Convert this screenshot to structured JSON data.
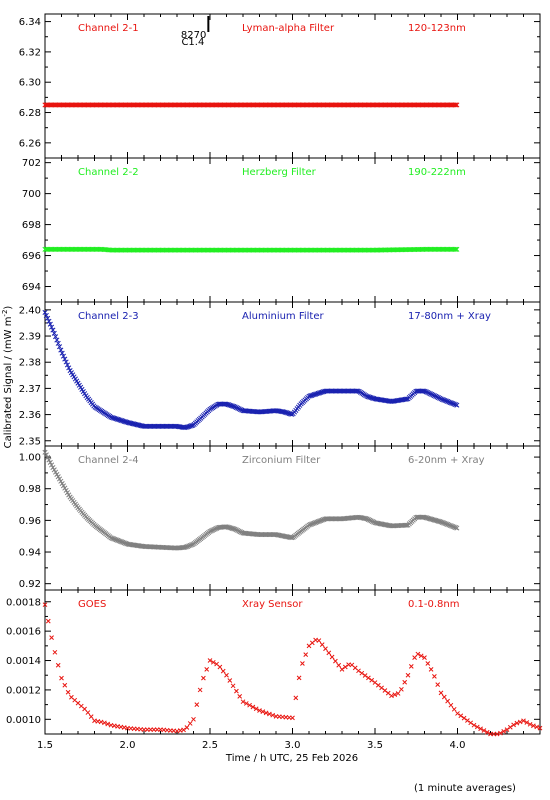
{
  "chart_data": {
    "type": "scatter",
    "xlabel": "Time / h UTC, 25 Feb 2026",
    "ylabel": "Calibrated Signal / (mW m",
    "ylabel_sup": "-2",
    "ylabel_close": ")",
    "footnote": "(1 minute averages)",
    "xlim": [
      1.5,
      4.5
    ],
    "xticks": [
      "1.5",
      "2.0",
      "2.5",
      "3.0",
      "3.5",
      "4.0"
    ],
    "xtick_values": [
      1.5,
      2.0,
      2.5,
      3.0,
      3.5,
      4.0
    ],
    "flare_marker": {
      "x": 2.49,
      "label_top": "8270",
      "label_bottom": "C1.4"
    },
    "panels": [
      {
        "name": "Channel 2-1",
        "filter": "Lyman-alpha Filter",
        "band": "120-123nm",
        "color": "#e8140f",
        "ylim": [
          6.25,
          6.345
        ],
        "yticks": [
          "6.26",
          "6.28",
          "6.30",
          "6.32",
          "6.34"
        ],
        "ytick_values": [
          6.26,
          6.28,
          6.3,
          6.32,
          6.34
        ],
        "x": [
          1.5,
          1.6,
          1.7,
          1.8,
          1.85,
          1.9,
          2.0,
          2.2,
          2.5,
          2.8,
          3.0,
          3.2,
          3.5,
          3.8,
          4.0
        ],
        "y": [
          6.285,
          6.285,
          6.285,
          6.285,
          6.285,
          6.285,
          6.285,
          6.285,
          6.285,
          6.285,
          6.285,
          6.285,
          6.285,
          6.285,
          6.285
        ]
      },
      {
        "name": "Channel 2-2",
        "filter": "Herzberg Filter",
        "band": "190-222nm",
        "color": "#22ee22",
        "ylim": [
          693,
          702.3
        ],
        "yticks": [
          "694",
          "696",
          "698",
          "700",
          "702"
        ],
        "ytick_values": [
          694,
          696,
          698,
          700,
          702
        ],
        "x": [
          1.5,
          1.6,
          1.7,
          1.8,
          1.85,
          1.9,
          2.0,
          2.2,
          2.5,
          2.8,
          3.0,
          3.2,
          3.5,
          3.8,
          4.0
        ],
        "y": [
          696.4,
          696.4,
          696.4,
          696.4,
          696.4,
          696.35,
          696.35,
          696.35,
          696.35,
          696.35,
          696.35,
          696.35,
          696.35,
          696.4,
          696.4
        ]
      },
      {
        "name": "Channel 2-3",
        "filter": "Aluminium Filter",
        "band": "17-80nm + Xray",
        "color": "#1a22b0",
        "ylim": [
          2.348,
          2.403
        ],
        "yticks": [
          "2.35",
          "2.36",
          "2.37",
          "2.38",
          "2.39",
          "2.40"
        ],
        "ytick_values": [
          2.35,
          2.36,
          2.37,
          2.38,
          2.39,
          2.4
        ],
        "x": [
          1.5,
          1.55,
          1.6,
          1.65,
          1.7,
          1.75,
          1.8,
          1.85,
          1.9,
          2.0,
          2.1,
          2.2,
          2.3,
          2.35,
          2.4,
          2.45,
          2.5,
          2.55,
          2.6,
          2.65,
          2.7,
          2.8,
          2.9,
          2.95,
          3.0,
          3.05,
          3.1,
          3.2,
          3.3,
          3.4,
          3.45,
          3.5,
          3.6,
          3.7,
          3.75,
          3.8,
          3.9,
          4.0
        ],
        "y": [
          2.399,
          2.392,
          2.384,
          2.377,
          2.372,
          2.367,
          2.363,
          2.361,
          2.359,
          2.357,
          2.3555,
          2.3555,
          2.3555,
          2.355,
          2.356,
          2.359,
          2.362,
          2.364,
          2.364,
          2.363,
          2.3615,
          2.361,
          2.3615,
          2.361,
          2.36,
          2.364,
          2.367,
          2.369,
          2.369,
          2.369,
          2.367,
          2.366,
          2.365,
          2.366,
          2.369,
          2.369,
          2.366,
          2.3635
        ]
      },
      {
        "name": "Channel 2-4",
        "filter": "Zirconium Filter",
        "band": "6-20nm + Xray",
        "color": "#808080",
        "ylim": [
          0.916,
          1.007
        ],
        "yticks": [
          "0.92",
          "0.94",
          "0.96",
          "0.98",
          "1.00"
        ],
        "ytick_values": [
          0.92,
          0.94,
          0.96,
          0.98,
          1.0
        ],
        "x": [
          1.5,
          1.55,
          1.6,
          1.65,
          1.7,
          1.75,
          1.8,
          1.85,
          1.9,
          2.0,
          2.1,
          2.2,
          2.3,
          2.35,
          2.4,
          2.45,
          2.5,
          2.55,
          2.6,
          2.65,
          2.7,
          2.8,
          2.9,
          2.95,
          3.0,
          3.05,
          3.1,
          3.2,
          3.3,
          3.4,
          3.45,
          3.5,
          3.6,
          3.7,
          3.75,
          3.8,
          3.9,
          4.0
        ],
        "y": [
          1.003,
          0.993,
          0.984,
          0.975,
          0.968,
          0.962,
          0.957,
          0.953,
          0.949,
          0.945,
          0.9435,
          0.943,
          0.9425,
          0.943,
          0.945,
          0.949,
          0.953,
          0.9555,
          0.956,
          0.9545,
          0.952,
          0.951,
          0.951,
          0.95,
          0.949,
          0.953,
          0.957,
          0.961,
          0.961,
          0.962,
          0.961,
          0.9585,
          0.9565,
          0.957,
          0.962,
          0.962,
          0.959,
          0.955
        ]
      },
      {
        "name": "GOES",
        "filter": "Xray Sensor",
        "band": "0.1-0.8nm",
        "color": "#e8140f",
        "ylim": [
          0.0009,
          0.00188
        ],
        "yticks": [
          "0.0010",
          "0.0012",
          "0.0014",
          "0.0016",
          "0.0018"
        ],
        "ytick_values": [
          0.001,
          0.0012,
          0.0014,
          0.0016,
          0.0018
        ],
        "x": [
          1.5,
          1.55,
          1.6,
          1.65,
          1.7,
          1.75,
          1.8,
          1.85,
          1.9,
          2.0,
          2.1,
          2.2,
          2.3,
          2.35,
          2.4,
          2.45,
          2.5,
          2.55,
          2.6,
          2.7,
          2.8,
          2.9,
          3.0,
          3.05,
          3.1,
          3.15,
          3.2,
          3.3,
          3.35,
          3.4,
          3.5,
          3.6,
          3.65,
          3.7,
          3.75,
          3.8,
          3.85,
          3.9,
          4.0,
          4.1,
          4.2,
          4.25,
          4.3,
          4.35,
          4.4,
          4.45,
          4.5
        ],
        "y": [
          0.00178,
          0.0015,
          0.00128,
          0.00116,
          0.00111,
          0.00106,
          0.00099,
          0.00098,
          0.00096,
          0.00094,
          0.00093,
          0.00093,
          0.00092,
          0.00093,
          0.001,
          0.00125,
          0.0014,
          0.00137,
          0.0013,
          0.00112,
          0.00106,
          0.00102,
          0.00101,
          0.00135,
          0.0015,
          0.00155,
          0.00148,
          0.00134,
          0.00138,
          0.00133,
          0.00125,
          0.00116,
          0.00118,
          0.0013,
          0.00145,
          0.00142,
          0.00132,
          0.00118,
          0.00104,
          0.00096,
          0.0009,
          0.0009,
          0.00093,
          0.00097,
          0.00099,
          0.00096,
          0.00094
        ]
      }
    ]
  }
}
